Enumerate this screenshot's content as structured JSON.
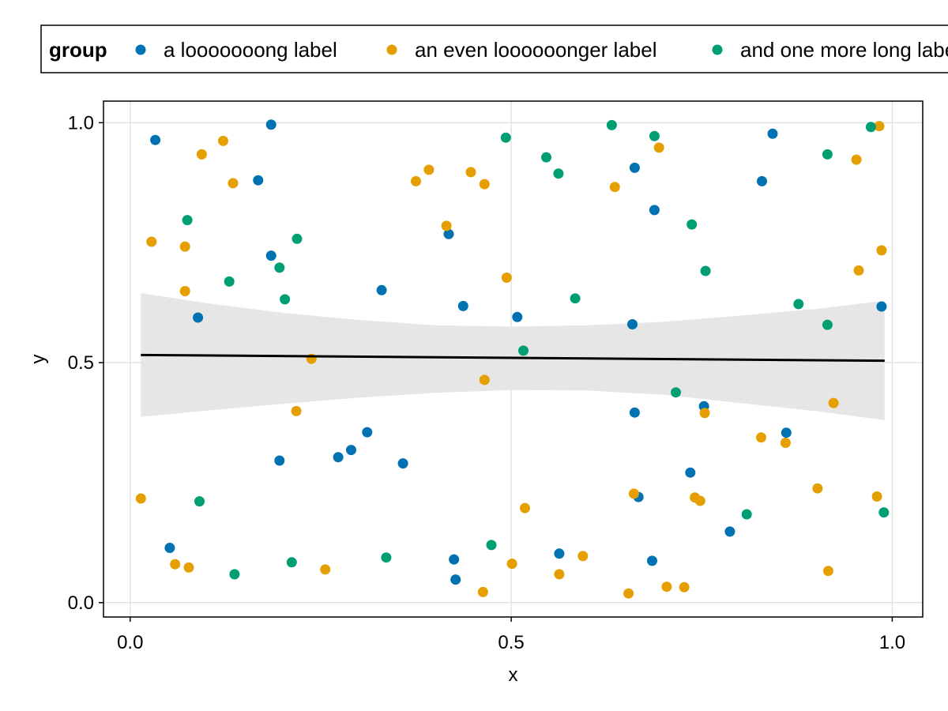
{
  "chart_data": {
    "type": "scatter",
    "title": "",
    "xlabel": "x",
    "ylabel": "y",
    "xlim": [
      -0.035,
      1.04
    ],
    "ylim": [
      -0.03,
      1.045
    ],
    "xticks": [
      0.0,
      0.5,
      1.0
    ],
    "yticks": [
      0.0,
      0.5,
      1.0
    ],
    "xtick_labels": [
      "0.0",
      "0.5",
      "1.0"
    ],
    "ytick_labels": [
      "0.0",
      "0.5",
      "1.0"
    ],
    "grid": true,
    "legend": {
      "title": "group",
      "placement": "top",
      "entries": [
        "a looooooong label",
        "an even loooooonger label",
        "and one more long label"
      ]
    },
    "series": [
      {
        "name": "a looooooong label",
        "color": "#0072B2",
        "points": [
          [
            0.033,
            0.964
          ],
          [
            0.185,
            0.996
          ],
          [
            0.168,
            0.88
          ],
          [
            0.185,
            0.723
          ],
          [
            0.089,
            0.594
          ],
          [
            0.052,
            0.114
          ],
          [
            0.196,
            0.296
          ],
          [
            0.273,
            0.303
          ],
          [
            0.29,
            0.318
          ],
          [
            0.311,
            0.355
          ],
          [
            0.33,
            0.651
          ],
          [
            0.358,
            0.29
          ],
          [
            0.418,
            0.768
          ],
          [
            0.437,
            0.618
          ],
          [
            0.425,
            0.09
          ],
          [
            0.427,
            0.048
          ],
          [
            0.508,
            0.595
          ],
          [
            0.563,
            0.102
          ],
          [
            0.659,
            0.58
          ],
          [
            0.662,
            0.906
          ],
          [
            0.662,
            0.396
          ],
          [
            0.667,
            0.22
          ],
          [
            0.685,
            0.087
          ],
          [
            0.688,
            0.818
          ],
          [
            0.735,
            0.271
          ],
          [
            0.753,
            0.409
          ],
          [
            0.787,
            0.148
          ],
          [
            0.829,
            0.878
          ],
          [
            0.843,
            0.977
          ],
          [
            0.861,
            0.354
          ],
          [
            0.986,
            0.617
          ]
        ]
      },
      {
        "name": "an even loooooonger label",
        "color": "#E69F00",
        "points": [
          [
            0.014,
            0.217
          ],
          [
            0.028,
            0.752
          ],
          [
            0.059,
            0.08
          ],
          [
            0.072,
            0.742
          ],
          [
            0.072,
            0.649
          ],
          [
            0.077,
            0.073
          ],
          [
            0.094,
            0.934
          ],
          [
            0.122,
            0.962
          ],
          [
            0.135,
            0.874
          ],
          [
            0.218,
            0.399
          ],
          [
            0.238,
            0.508
          ],
          [
            0.256,
            0.069
          ],
          [
            0.375,
            0.878
          ],
          [
            0.392,
            0.902
          ],
          [
            0.415,
            0.785
          ],
          [
            0.447,
            0.897
          ],
          [
            0.463,
            0.022
          ],
          [
            0.465,
            0.464
          ],
          [
            0.465,
            0.872
          ],
          [
            0.494,
            0.677
          ],
          [
            0.501,
            0.081
          ],
          [
            0.518,
            0.197
          ],
          [
            0.563,
            0.059
          ],
          [
            0.594,
            0.097
          ],
          [
            0.636,
            0.866
          ],
          [
            0.654,
            0.019
          ],
          [
            0.661,
            0.227
          ],
          [
            0.694,
            0.948
          ],
          [
            0.704,
            0.033
          ],
          [
            0.727,
            0.032
          ],
          [
            0.741,
            0.219
          ],
          [
            0.748,
            0.212
          ],
          [
            0.754,
            0.395
          ],
          [
            0.828,
            0.344
          ],
          [
            0.86,
            0.333
          ],
          [
            0.902,
            0.238
          ],
          [
            0.916,
            0.066
          ],
          [
            0.923,
            0.416
          ],
          [
            0.953,
            0.923
          ],
          [
            0.956,
            0.692
          ],
          [
            0.98,
            0.221
          ],
          [
            0.983,
            0.993
          ],
          [
            0.986,
            0.734
          ]
        ]
      },
      {
        "name": "and one more long label",
        "color": "#009E73",
        "points": [
          [
            0.075,
            0.797
          ],
          [
            0.091,
            0.211
          ],
          [
            0.13,
            0.669
          ],
          [
            0.137,
            0.059
          ],
          [
            0.196,
            0.698
          ],
          [
            0.203,
            0.632
          ],
          [
            0.212,
            0.084
          ],
          [
            0.219,
            0.758
          ],
          [
            0.336,
            0.094
          ],
          [
            0.474,
            0.12
          ],
          [
            0.493,
            0.969
          ],
          [
            0.516,
            0.525
          ],
          [
            0.546,
            0.928
          ],
          [
            0.562,
            0.894
          ],
          [
            0.584,
            0.634
          ],
          [
            0.632,
            0.995
          ],
          [
            0.688,
            0.972
          ],
          [
            0.716,
            0.438
          ],
          [
            0.737,
            0.788
          ],
          [
            0.755,
            0.691
          ],
          [
            0.809,
            0.184
          ],
          [
            0.877,
            0.622
          ],
          [
            0.915,
            0.579
          ],
          [
            0.915,
            0.934
          ],
          [
            0.972,
            0.991
          ],
          [
            0.989,
            0.188
          ]
        ]
      }
    ],
    "fit_line": {
      "color": "#000000",
      "points": [
        [
          0.014,
          0.516
        ],
        [
          0.99,
          0.504
        ]
      ]
    },
    "confidence_band": {
      "color": "#e6e6e6",
      "x": [
        0.014,
        0.1,
        0.2,
        0.3,
        0.4,
        0.5,
        0.6,
        0.7,
        0.8,
        0.9,
        0.99
      ],
      "upper": [
        0.645,
        0.624,
        0.604,
        0.589,
        0.578,
        0.575,
        0.578,
        0.585,
        0.598,
        0.612,
        0.629
      ],
      "lower": [
        0.387,
        0.4,
        0.414,
        0.427,
        0.437,
        0.443,
        0.442,
        0.433,
        0.416,
        0.399,
        0.38
      ]
    }
  }
}
